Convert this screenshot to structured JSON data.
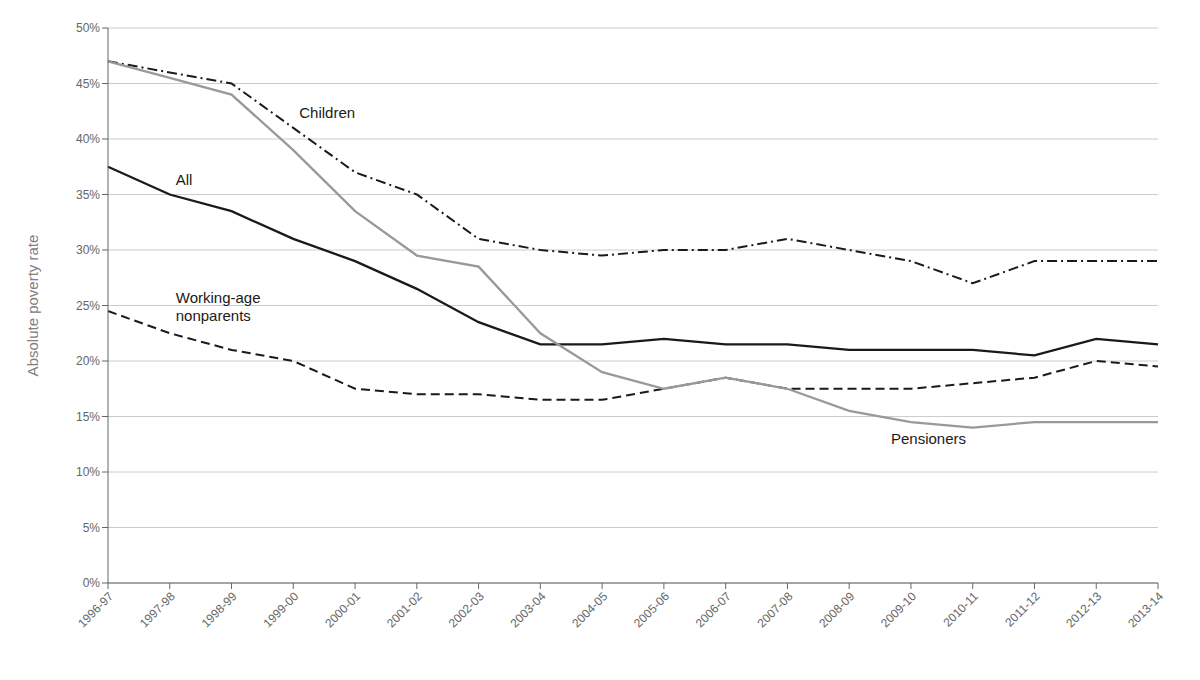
{
  "chart_data": {
    "type": "line",
    "y_label": "Absolute poverty rate",
    "categories": [
      "1996-97",
      "1997-98",
      "1998-99",
      "1999-00",
      "2000-01",
      "2001-02",
      "2002-03",
      "2003-04",
      "2004-05",
      "2005-06",
      "2006-07",
      "2007-08",
      "2008-09",
      "2009-10",
      "2010-11",
      "2011-12",
      "2012-13",
      "2013-14"
    ],
    "series": [
      {
        "name": "Children",
        "color": "#1a1a1a",
        "line_style": "dashdot",
        "values": [
          0.47,
          0.46,
          0.45,
          0.41,
          0.37,
          0.35,
          0.31,
          0.3,
          0.295,
          0.3,
          0.3,
          0.31,
          0.3,
          0.29,
          0.27,
          0.29,
          0.29,
          0.29
        ]
      },
      {
        "name": "All",
        "color": "#1a1a1a",
        "line_style": "solid",
        "values": [
          0.375,
          0.35,
          0.335,
          0.31,
          0.29,
          0.265,
          0.235,
          0.215,
          0.215,
          0.22,
          0.215,
          0.215,
          0.21,
          0.21,
          0.21,
          0.205,
          0.22,
          0.215
        ]
      },
      {
        "name": "Working-age\nnonparents",
        "color": "#1a1a1a",
        "line_style": "dashed",
        "values": [
          0.245,
          0.225,
          0.21,
          0.2,
          0.175,
          0.17,
          0.17,
          0.165,
          0.165,
          0.175,
          0.185,
          0.175,
          0.175,
          0.175,
          0.18,
          0.185,
          0.2,
          0.195
        ]
      },
      {
        "name": "Pensioners",
        "color": "#999999",
        "line_style": "solid",
        "values": [
          0.47,
          0.455,
          0.44,
          0.39,
          0.335,
          0.295,
          0.285,
          0.225,
          0.19,
          0.175,
          0.185,
          0.175,
          0.155,
          0.145,
          0.14,
          0.145,
          0.145,
          0.145
        ]
      }
    ],
    "ylim": [
      0,
      0.5
    ],
    "yticks": [
      {
        "value": 0.0,
        "label": "0%"
      },
      {
        "value": 0.05,
        "label": "5%"
      },
      {
        "value": 0.1,
        "label": "10%"
      },
      {
        "value": 0.15,
        "label": "15%"
      },
      {
        "value": 0.2,
        "label": "20%"
      },
      {
        "value": 0.25,
        "label": "25%"
      },
      {
        "value": 0.3,
        "label": "30%"
      },
      {
        "value": 0.35,
        "label": "35%"
      },
      {
        "value": 0.4,
        "label": "40%"
      },
      {
        "value": 0.45,
        "label": "45%"
      },
      {
        "value": 0.5,
        "label": "50%"
      }
    ],
    "grid": true
  }
}
